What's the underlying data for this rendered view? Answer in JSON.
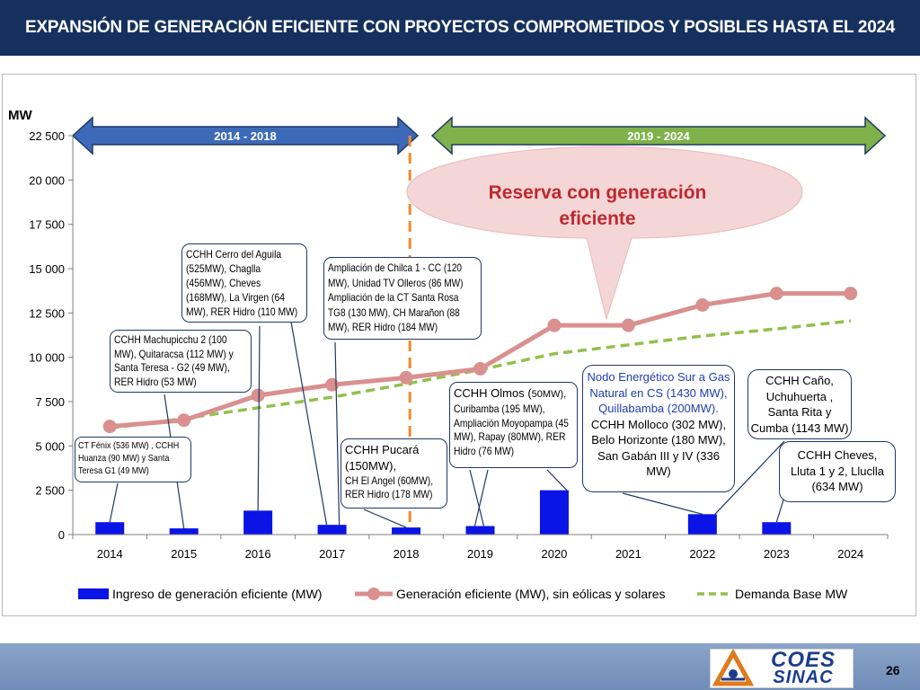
{
  "header": {
    "title": "EXPANSIÓN DE GENERACIÓN EFICIENTE CON PROYECTOS COMPROMETIDOS Y POSIBLES HASTA EL 2024"
  },
  "footer": {
    "logo_line1": "COES",
    "logo_line2": "SINAC",
    "page_number": "26"
  },
  "colors": {
    "bar": "#0a14e6",
    "efficient_line": "#d9908f",
    "demand_line": "#92c04c",
    "arrow_left": "#3d6ab8",
    "arrow_right": "#7fb24a",
    "divider": "#f08a2c",
    "reserve_bubble": "#f5d6d6",
    "reserve_text": "#c0282e"
  },
  "chart_data": {
    "type": "bar+line",
    "ylabel": "MW",
    "ylim": [
      0,
      22500
    ],
    "yticks": [
      0,
      2500,
      5000,
      7500,
      10000,
      12500,
      15000,
      17500,
      20000,
      22500
    ],
    "ytick_labels": [
      "0",
      "2 500",
      "5 000",
      "7 500",
      "10 000",
      "12 500",
      "15 000",
      "17 500",
      "20 000",
      "22 500"
    ],
    "categories": [
      "2014",
      "2015",
      "2016",
      "2017",
      "2018",
      "2019",
      "2020",
      "2021",
      "2022",
      "2023",
      "2024"
    ],
    "legend_position": "bottom",
    "series": [
      {
        "name": "Ingreso de generación eficiente (MW)",
        "type": "bar",
        "values": [
          700,
          350,
          1350,
          550,
          400,
          480,
          2500,
          0,
          1150,
          700,
          0
        ]
      },
      {
        "name": "Generación eficiente (MW), sin eólicas y solares",
        "type": "line",
        "values": [
          6100,
          6450,
          7850,
          8450,
          8850,
          9350,
          11800,
          11800,
          12950,
          13600,
          13600
        ]
      },
      {
        "name": "Demanda Base MW",
        "type": "dashed-line",
        "values": [
          6000,
          6550,
          7150,
          7750,
          8500,
          9300,
          10200,
          10700,
          11200,
          11600,
          12050
        ]
      }
    ],
    "periods": [
      {
        "label": "2014 - 2018",
        "from": "2014",
        "to": "2018"
      },
      {
        "label": "2019 - 2024",
        "from": "2019",
        "to": "2024"
      }
    ],
    "reserve_label_line1": "Reserva con generación",
    "reserve_label_line2": "eficiente"
  },
  "annotations": {
    "a2014": {
      "lines": [
        "CT Fénix (536 MW) , CCHH",
        "Huanza (90 MW)  y Santa",
        "Teresa  G1 (49 MW)"
      ]
    },
    "a2015": {
      "lines": [
        "CCHH Machupicchu  2 (100",
        "MW), Quitaracsa  (112 MW) y",
        "Santa Teresa - G2  (49 MW),",
        "RER  Hidro (53 MW)"
      ]
    },
    "a2016": {
      "lines": [
        "CCHH Cerro del Aguila",
        "(525MW),  Chaglla",
        "(456MW), Cheves",
        "(168MW), La Virgen  (64",
        "MW), RER  Hidro (110 MW)"
      ]
    },
    "a2017": {
      "lines": [
        "Ampliación  de Chilca  1 - CC (120",
        "MW), Unidad  TV Olleros  (86 MW)",
        "Ampliación  de la CT Santa Rosa",
        "TG8 (130 MW), CH Marañon (88",
        "MW),  RER Hidro (184 MW)"
      ]
    },
    "a2018": {
      "line1": "CCHH  Pucará",
      "line2": "(150MW),",
      "line3": "CH El Angel  (60MW),",
      "line4": "RER Hidro  (178 MW)"
    },
    "a2019": {
      "line1a": "CCHH Olmos (",
      "line1b": "50MW),",
      "rest": [
        "Curibamba  (195 MW),",
        "Ampliación  Moyopampa  (45",
        "MW), Rapay (80MW), RER",
        "Hidro (76 MW)"
      ]
    },
    "a2020": {
      "blue_lines": [
        "Nodo Energético Sur a Gas",
        "Natural en CS (1430 MW),",
        "Quillabamba (200MW)."
      ],
      "black_lines": [
        "CCHH Molloco  (302 MW),",
        "Belo Horizonte  (180 MW),",
        "San Gabán III y IV (336",
        "MW)"
      ]
    },
    "a2022": {
      "lines": [
        "CCHH Caño,",
        "Uchuhuerta ,",
        "Santa Rita y",
        "Cumba (1143 MW)"
      ]
    },
    "a2023": {
      "lines": [
        "CCHH Cheves,",
        "Lluta 1 y 2, Lluclla",
        "(634 MW)"
      ]
    }
  }
}
